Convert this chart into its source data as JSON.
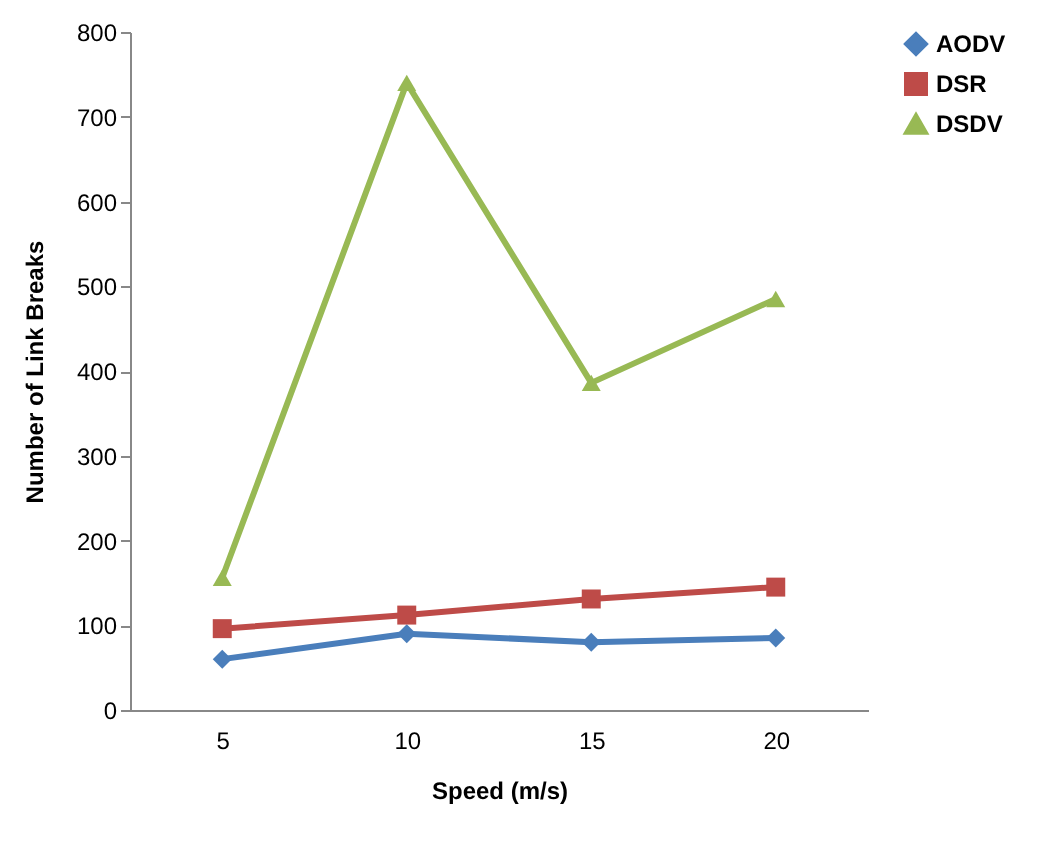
{
  "chart_data": {
    "type": "line",
    "xlabel": "Speed (m/s)",
    "ylabel": "Number of Link Breaks",
    "categories": [
      "5",
      "10",
      "15",
      "20"
    ],
    "series": [
      {
        "name": "AODV",
        "color": "#4a7ebb",
        "marker": "diamond",
        "values": [
          60,
          90,
          80,
          85
        ]
      },
      {
        "name": "DSR",
        "color": "#be4b48",
        "marker": "square",
        "values": [
          96,
          112,
          131,
          145
        ]
      },
      {
        "name": "DSDV",
        "color": "#98b954",
        "marker": "triangle",
        "values": [
          156,
          740,
          386,
          485
        ]
      }
    ],
    "ylim": [
      0,
      800
    ],
    "yticks": [
      0,
      100,
      200,
      300,
      400,
      500,
      600,
      700,
      800
    ],
    "grid": false,
    "legend": "right"
  }
}
